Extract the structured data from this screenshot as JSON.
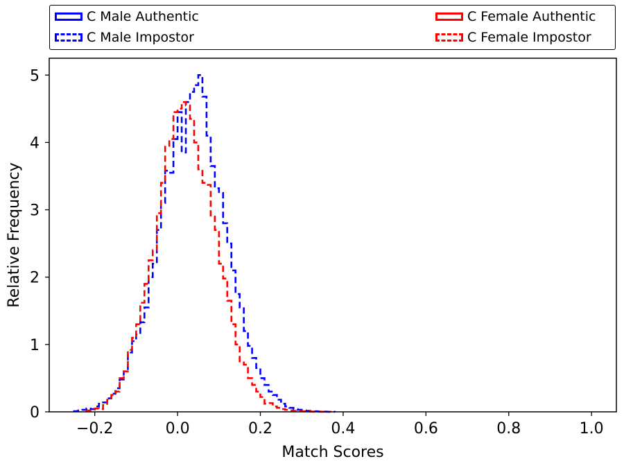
{
  "chart_data": {
    "type": "histogram",
    "xlabel": "Match Scores",
    "ylabel": "Relative Frequency",
    "xlim": [
      -0.31,
      1.06
    ],
    "ylim": [
      0,
      5.25
    ],
    "xticks": [
      -0.2,
      0.0,
      0.2,
      0.4,
      0.6,
      0.8,
      1.0
    ],
    "xtick_labels": [
      "−0.2",
      "0.0",
      "0.2",
      "0.4",
      "0.6",
      "0.8",
      "1.0"
    ],
    "yticks": [
      0,
      1,
      2,
      3,
      4,
      5
    ],
    "ytick_labels": [
      "0",
      "1",
      "2",
      "3",
      "4",
      "5"
    ],
    "grid": false,
    "legend_position": "above-plot",
    "bin_width": 0.01,
    "series": [
      {
        "name": "C Male Authentic",
        "color": "#0000ff",
        "linestyle": "solid",
        "bin_start": 0.0,
        "values": []
      },
      {
        "name": "C Male Impostor",
        "color": "#0000ff",
        "linestyle": "dashed",
        "bin_start": -0.25,
        "values": [
          0.01,
          0.02,
          0.03,
          0.05,
          0.04,
          0.08,
          0.12,
          0.14,
          0.2,
          0.27,
          0.35,
          0.48,
          0.6,
          0.88,
          1.05,
          1.15,
          1.33,
          1.55,
          2.0,
          2.2,
          2.7,
          3.1,
          3.58,
          3.55,
          4.05,
          4.45,
          3.85,
          4.6,
          4.75,
          4.85,
          5.0,
          4.68,
          4.1,
          3.65,
          3.32,
          3.25,
          2.8,
          2.5,
          2.1,
          1.75,
          1.55,
          1.2,
          0.98,
          0.8,
          0.65,
          0.5,
          0.4,
          0.3,
          0.25,
          0.18,
          0.12,
          0.08,
          0.06,
          0.04,
          0.03,
          0.02,
          0.015,
          0.01,
          0.008,
          0.005,
          0.003,
          0.002,
          0.001
        ]
      },
      {
        "name": "C Female Authentic",
        "color": "#ff0000",
        "linestyle": "solid",
        "bin_start": 0.0,
        "values": []
      },
      {
        "name": "C Female Impostor",
        "color": "#ff0000",
        "linestyle": "dashed",
        "bin_start": -0.22,
        "values": [
          0.02,
          0.02,
          0.05,
          0.04,
          0.1,
          0.18,
          0.25,
          0.3,
          0.5,
          0.6,
          0.92,
          1.1,
          1.3,
          1.62,
          1.9,
          2.25,
          2.4,
          2.95,
          3.4,
          3.95,
          4.05,
          4.45,
          4.5,
          4.6,
          4.55,
          4.35,
          4.0,
          3.6,
          3.4,
          3.37,
          2.9,
          2.7,
          2.2,
          1.98,
          1.65,
          1.3,
          1.0,
          0.75,
          0.7,
          0.5,
          0.4,
          0.3,
          0.22,
          0.12,
          0.13,
          0.08,
          0.06,
          0.04,
          0.03,
          0.02,
          0.015,
          0.01,
          0.008,
          0.006,
          0.004,
          0.003,
          0.002,
          0.002,
          0.001
        ]
      }
    ]
  }
}
